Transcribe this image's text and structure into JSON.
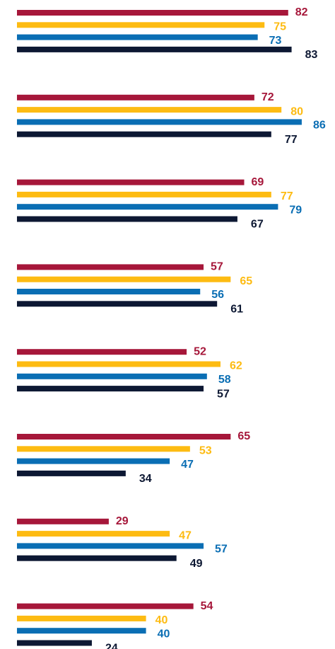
{
  "chart_data": {
    "type": "bar",
    "orientation": "horizontal",
    "categories": [
      null,
      null,
      null,
      null,
      null,
      null,
      null,
      null
    ],
    "series": [
      {
        "color": "#a6173a",
        "values": [
          82,
          72,
          69,
          57,
          52,
          65,
          29,
          54
        ]
      },
      {
        "color": "#fdbb12",
        "values": [
          75,
          80,
          77,
          65,
          62,
          53,
          47,
          40
        ]
      },
      {
        "color": "#0a6eb4",
        "values": [
          73,
          86,
          79,
          56,
          58,
          47,
          57,
          40
        ]
      },
      {
        "color": "#0d1833",
        "values": [
          83,
          77,
          67,
          61,
          57,
          34,
          49,
          24
        ]
      }
    ]
  }
}
